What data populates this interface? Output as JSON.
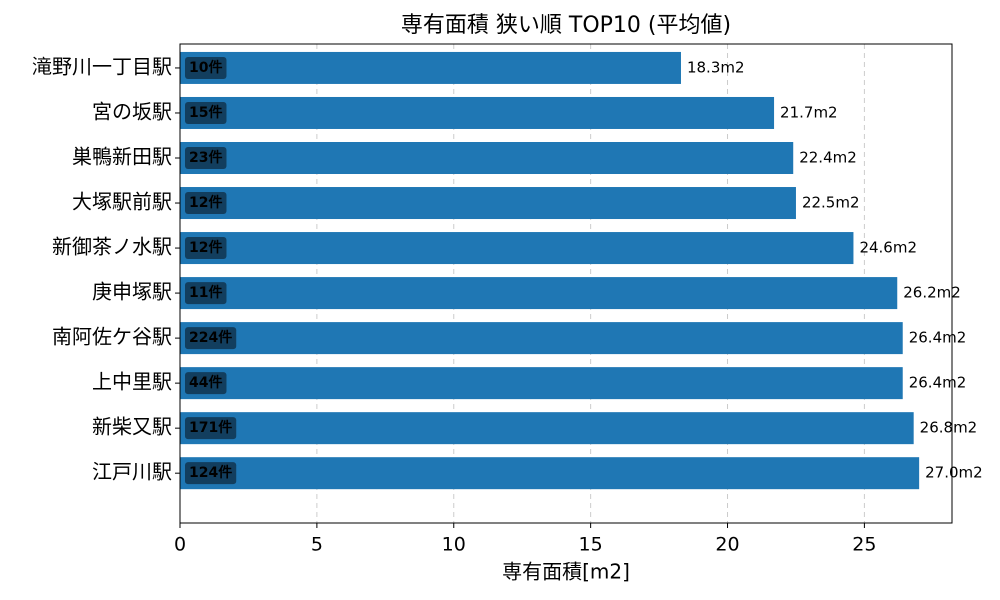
{
  "chart_data": {
    "type": "barh",
    "title": "専有面積 狭い順 TOP10 (平均値)",
    "x_label": "専有面積[m2]",
    "categories": [
      "滝野川一丁目駅",
      "宮の坂駅",
      "巣鴨新田駅",
      "大塚駅前駅",
      "新御茶ノ水駅",
      "庚申塚駅",
      "南阿佐ケ谷駅",
      "上中里駅",
      "新柴又駅",
      "江戸川駅"
    ],
    "values": [
      18.3,
      21.7,
      22.4,
      22.5,
      24.6,
      26.2,
      26.4,
      26.4,
      26.8,
      27.0
    ],
    "value_labels": [
      "18.3m2",
      "21.7m2",
      "22.4m2",
      "22.5m2",
      "24.6m2",
      "26.2m2",
      "26.4m2",
      "26.4m2",
      "26.8m2",
      "27.0m2"
    ],
    "count_labels": [
      "10件",
      "15件",
      "23件",
      "12件",
      "12件",
      "11件",
      "224件",
      "44件",
      "171件",
      "124件"
    ],
    "color": "#1f77b4",
    "xlim": [
      0,
      28.2
    ],
    "xticks": [
      0,
      5,
      10,
      15,
      20,
      25
    ],
    "grid": true
  }
}
